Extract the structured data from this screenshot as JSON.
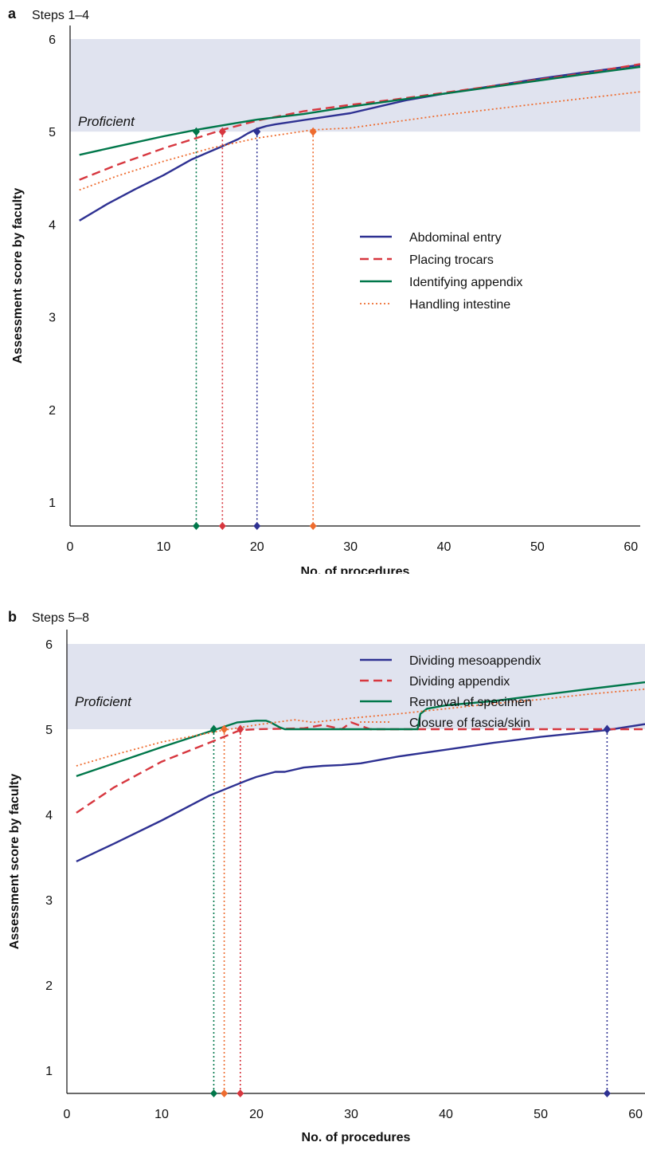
{
  "chart_data": [
    {
      "type": "line",
      "panel_letter": "a",
      "title": "Steps 1–4",
      "xlabel": "No. of procedures",
      "ylabel": "Assessment score by faculty",
      "xlim": [
        0,
        61
      ],
      "ylim": [
        0.75,
        6
      ],
      "xticks": [
        0,
        10,
        20,
        30,
        40,
        50,
        60
      ],
      "yticks": [
        1,
        2,
        3,
        4,
        5,
        6
      ],
      "grid": false,
      "legend_position": "center-right",
      "shaded_band": {
        "label": "Proficient",
        "y_from": 5,
        "y_to": 6,
        "color": "#e0e3ef"
      },
      "series": [
        {
          "name": "Abdominal entry",
          "color": "#2e3192",
          "style": "solid",
          "x": [
            1,
            4,
            7,
            10,
            13,
            16,
            18,
            19,
            20,
            21,
            22,
            24,
            26,
            28,
            30,
            33,
            36,
            40,
            45,
            50,
            55,
            61
          ],
          "y": [
            4.04,
            4.22,
            4.38,
            4.53,
            4.7,
            4.83,
            4.92,
            4.98,
            5.03,
            5.06,
            5.08,
            5.11,
            5.14,
            5.17,
            5.2,
            5.27,
            5.34,
            5.41,
            5.49,
            5.57,
            5.64,
            5.72
          ],
          "threshold_x": 20.0
        },
        {
          "name": "Placing trocars",
          "color": "#d7373f",
          "style": "dashed",
          "x": [
            1,
            5,
            10,
            13.5,
            16.3,
            20,
            25,
            30,
            35,
            40,
            45,
            50,
            55,
            61
          ],
          "y": [
            4.48,
            4.64,
            4.82,
            4.93,
            5.02,
            5.12,
            5.22,
            5.29,
            5.35,
            5.42,
            5.49,
            5.56,
            5.63,
            5.73
          ],
          "threshold_x": 16.3
        },
        {
          "name": "Identifying appendix",
          "color": "#00774a",
          "style": "solid",
          "x": [
            1,
            5,
            10,
            13.5,
            17,
            20,
            25,
            30,
            35,
            40,
            45,
            50,
            55,
            61
          ],
          "y": [
            4.75,
            4.84,
            4.95,
            5.02,
            5.08,
            5.13,
            5.19,
            5.27,
            5.34,
            5.41,
            5.48,
            5.55,
            5.62,
            5.7
          ],
          "threshold_x": 13.5
        },
        {
          "name": "Handling intestine",
          "color": "#ee6c2f",
          "style": "dotted",
          "x": [
            1,
            5,
            10,
            15,
            20,
            26,
            30,
            35,
            40,
            45,
            50,
            55,
            61
          ],
          "y": [
            4.37,
            4.52,
            4.68,
            4.82,
            4.93,
            5.02,
            5.04,
            5.11,
            5.18,
            5.24,
            5.3,
            5.36,
            5.43
          ],
          "threshold_x": 26.0
        }
      ]
    },
    {
      "type": "line",
      "panel_letter": "b",
      "title": "Steps 5–8",
      "xlabel": "No. of procedures",
      "ylabel": "Assessment score by faculty",
      "xlim": [
        0,
        61
      ],
      "ylim": [
        0.75,
        6
      ],
      "xticks": [
        0,
        10,
        20,
        30,
        40,
        50,
        60
      ],
      "yticks": [
        1,
        2,
        3,
        4,
        5,
        6
      ],
      "grid": false,
      "legend_position": "center-right",
      "shaded_band": {
        "label": "Proficient",
        "y_from": 5,
        "y_to": 6,
        "color": "#e0e3ef"
      },
      "series": [
        {
          "name": "Dividing mesoappendix",
          "color": "#2e3192",
          "style": "solid",
          "x": [
            1,
            5,
            10,
            15,
            17,
            19,
            20,
            22,
            23,
            25,
            27,
            29,
            31,
            35,
            40,
            45,
            50,
            57,
            61
          ],
          "y": [
            3.45,
            3.66,
            3.93,
            4.22,
            4.31,
            4.4,
            4.44,
            4.5,
            4.5,
            4.55,
            4.57,
            4.58,
            4.6,
            4.68,
            4.76,
            4.84,
            4.91,
            4.99,
            5.06
          ],
          "threshold_x": 57.0
        },
        {
          "name": "Dividing appendix",
          "color": "#d7373f",
          "style": "dashed",
          "x": [
            1,
            5,
            10,
            15,
            18.3,
            20,
            25,
            27,
            29,
            30,
            32,
            34,
            40,
            50,
            61
          ],
          "y": [
            4.02,
            4.32,
            4.62,
            4.84,
            4.99,
            5.0,
            5.01,
            5.05,
            5.0,
            5.08,
            5.0,
            5.0,
            5.0,
            5.0,
            5.0
          ],
          "threshold_x": 18.3
        },
        {
          "name": "Removal of specimen",
          "color": "#00774a",
          "style": "solid",
          "x": [
            1,
            5,
            10,
            15.5,
            18,
            20,
            21,
            21.5,
            22.5,
            23,
            25,
            30,
            35,
            37,
            37.3,
            38,
            40,
            45,
            50,
            55,
            61
          ],
          "y": [
            4.45,
            4.6,
            4.79,
            4.99,
            5.08,
            5.1,
            5.1,
            5.08,
            5.02,
            5.0,
            5.0,
            5.0,
            5.0,
            5.0,
            5.18,
            5.24,
            5.28,
            5.33,
            5.4,
            5.47,
            5.55
          ],
          "threshold_x": 15.5
        },
        {
          "name": "Closure of fascia/skin",
          "color": "#ee6c2f",
          "style": "dotted",
          "x": [
            1,
            5,
            10,
            16.6,
            20,
            24,
            26,
            30,
            35,
            40,
            45,
            50,
            55,
            61
          ],
          "y": [
            4.57,
            4.7,
            4.85,
            4.99,
            5.05,
            5.11,
            5.08,
            5.13,
            5.18,
            5.24,
            5.3,
            5.35,
            5.41,
            5.47
          ],
          "threshold_x": 16.6
        }
      ]
    }
  ]
}
